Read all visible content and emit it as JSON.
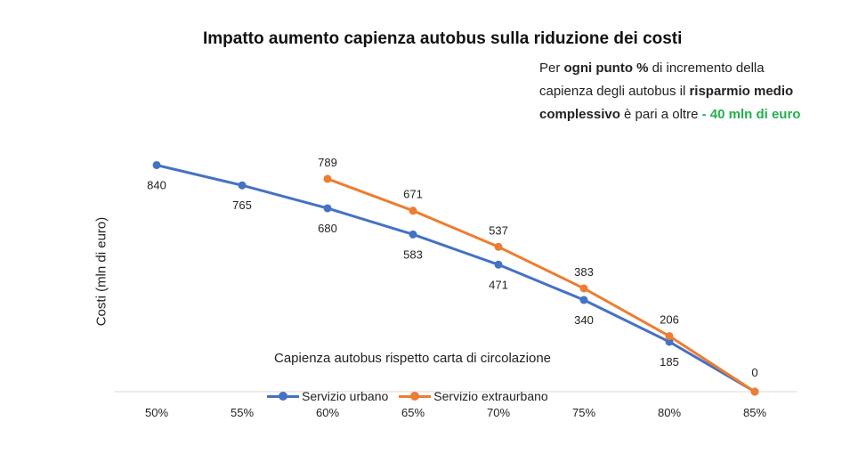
{
  "chart_data": {
    "type": "line",
    "title": "Impatto aumento capienza autobus sulla riduzione dei costi",
    "ylabel": "Costi (mln di euro)",
    "xlabel": "Capienza autobus rispetto carta di circolazione",
    "categories": [
      "50%",
      "55%",
      "60%",
      "65%",
      "70%",
      "75%",
      "80%",
      "85%"
    ],
    "series": [
      {
        "name": "Servizio urbano",
        "color": "#4472c4",
        "values": [
          840,
          765,
          680,
          583,
          471,
          340,
          185,
          0
        ]
      },
      {
        "name": "Servizio extraurbano",
        "color": "#ed7d31",
        "values": [
          null,
          null,
          789,
          671,
          537,
          383,
          206,
          0
        ]
      }
    ],
    "ylim": [
      0,
      900
    ],
    "grid": false,
    "legend": "bottom"
  },
  "note": {
    "p1": "Per ",
    "b1": "ogni punto %",
    "p2": " di incremento della capienza degli autobus il ",
    "b2": "risparmio medio complessivo",
    "p3": " è pari a oltre ",
    "highlight": "- 40 mln di euro",
    "highlight_color": "#22b14c"
  }
}
